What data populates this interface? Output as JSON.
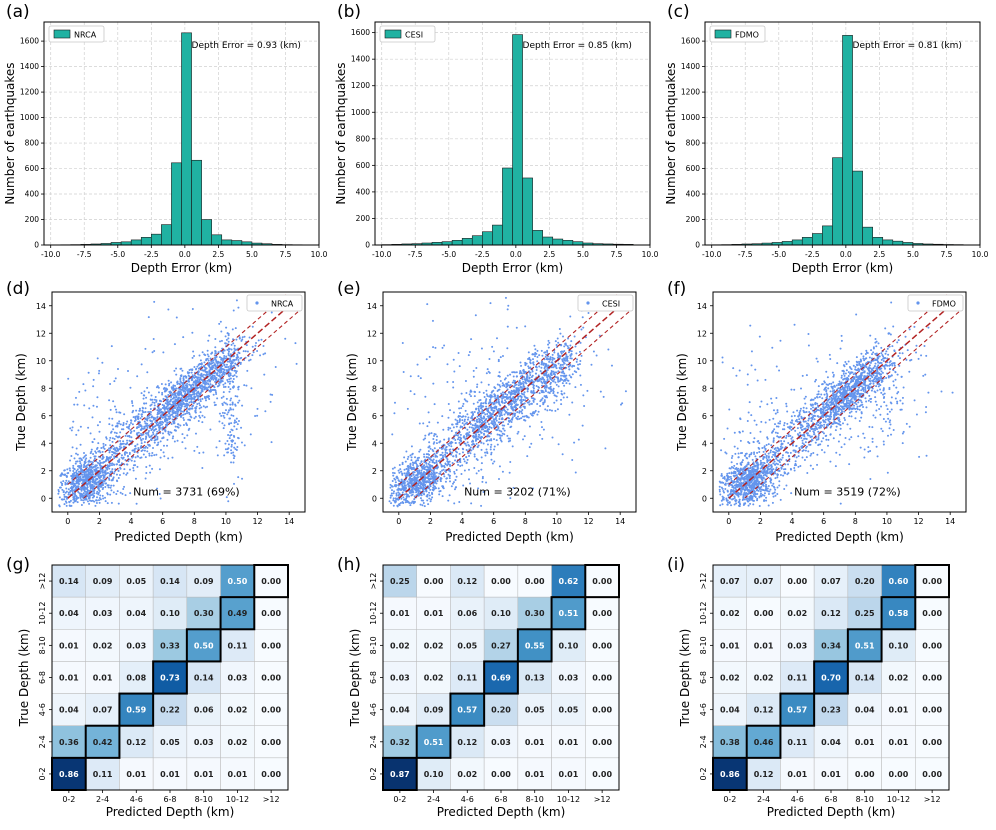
{
  "chart_data": [
    {
      "panel": "(a)",
      "type": "bar",
      "subtype": "histogram",
      "legend": "NRCA",
      "annotation": "Depth Error = 0.93 (km)",
      "xlabel": "Depth Error (km)",
      "ylabel": "Number of earthquakes",
      "xlim": [
        -10.5,
        10
      ],
      "ylim": [
        0,
        1750
      ],
      "xticks": [
        "-10.0",
        "-7.5",
        "-5.0",
        "-2.5",
        "0.0",
        "2.5",
        "5.0",
        "7.5",
        "10.0"
      ],
      "yticks": [
        "0",
        "200",
        "400",
        "600",
        "800",
        "1000",
        "1200",
        "1400",
        "1600"
      ],
      "bin_edges": [
        -10,
        -9.25,
        -8.5,
        -7.75,
        -7,
        -6.25,
        -5.5,
        -4.75,
        -4,
        -3.25,
        -2.5,
        -1.75,
        -1,
        -0.25,
        0.5,
        1.25,
        2,
        2.75,
        3.5,
        4.25,
        5,
        5.75,
        6.5,
        7.25,
        8,
        8.75
      ],
      "counts": [
        0,
        2,
        3,
        5,
        8,
        12,
        20,
        25,
        40,
        60,
        85,
        160,
        645,
        1665,
        665,
        200,
        80,
        40,
        35,
        25,
        15,
        10,
        5,
        3,
        2
      ]
    },
    {
      "panel": "(b)",
      "type": "bar",
      "subtype": "histogram",
      "legend": "CESI",
      "annotation": "Depth Error = 0.85 (km)",
      "xlabel": "Depth Error (km)",
      "ylabel": "Number of earthquakes",
      "xlim": [
        -10.5,
        10
      ],
      "ylim": [
        0,
        1680
      ],
      "xticks": [
        "-10.0",
        "-7.5",
        "-5.0",
        "-2.5",
        "0.0",
        "2.5",
        "5.0",
        "7.5",
        "10.0"
      ],
      "yticks": [
        "0",
        "200",
        "400",
        "600",
        "800",
        "1000",
        "1200",
        "1400",
        "1600"
      ],
      "bin_edges": [
        -10,
        -9.25,
        -8.5,
        -7.75,
        -7,
        -6.25,
        -5.5,
        -4.75,
        -4,
        -3.25,
        -2.5,
        -1.75,
        -1,
        -0.25,
        0.5,
        1.25,
        2,
        2.75,
        3.5,
        4.25,
        5,
        5.75,
        6.5,
        7.25,
        8,
        8.75
      ],
      "counts": [
        3,
        5,
        8,
        10,
        15,
        20,
        25,
        35,
        50,
        70,
        100,
        150,
        580,
        1585,
        505,
        110,
        60,
        45,
        35,
        25,
        15,
        10,
        8,
        6,
        5
      ]
    },
    {
      "panel": "(c)",
      "type": "bar",
      "subtype": "histogram",
      "legend": "FDMO",
      "annotation": "Depth Error = 0.81 (km)",
      "xlabel": "Depth Error (km)",
      "ylabel": "Number of earthquakes",
      "xlim": [
        -10.5,
        10
      ],
      "ylim": [
        0,
        1750
      ],
      "xticks": [
        "-10.0",
        "-7.5",
        "-5.0",
        "-2.5",
        "0.0",
        "2.5",
        "5.0",
        "7.5",
        "10.0"
      ],
      "yticks": [
        "0",
        "200",
        "400",
        "600",
        "800",
        "1000",
        "1200",
        "1400",
        "1600"
      ],
      "bin_edges": [
        -10,
        -9.25,
        -8.5,
        -7.75,
        -7,
        -6.25,
        -5.5,
        -4.75,
        -4,
        -3.25,
        -2.5,
        -1.75,
        -1,
        -0.25,
        0.5,
        1.25,
        2,
        2.75,
        3.5,
        4.25,
        5,
        5.75,
        6.5,
        7.25,
        8,
        8.75
      ],
      "counts": [
        2,
        3,
        5,
        8,
        10,
        15,
        20,
        28,
        40,
        60,
        90,
        150,
        685,
        1645,
        580,
        140,
        60,
        40,
        30,
        20,
        12,
        8,
        6,
        4,
        3
      ]
    },
    {
      "panel": "(d)",
      "type": "scatter",
      "legend": "NRCA",
      "annotation": "Num = 3731 (69%)",
      "xlabel": "Predicted Depth (km)",
      "ylabel": "True Depth (km)",
      "xlim": [
        -1,
        15
      ],
      "ylim": [
        -1,
        15
      ],
      "ticks": [
        "0",
        "2",
        "4",
        "6",
        "8",
        "10",
        "12",
        "14"
      ],
      "reference_lines": [
        "y = x",
        "y = x + 1",
        "y = x - 1"
      ],
      "point_clusters": [
        {
          "cx": 1.2,
          "cy": 1.2,
          "sx": 0.9,
          "sy": 0.9,
          "rho": 0.3,
          "n": 700
        },
        {
          "cx": 7.5,
          "cy": 7.6,
          "sx": 1.6,
          "sy": 1.7,
          "rho": 0.85,
          "n": 850
        },
        {
          "cx": 4.5,
          "cy": 4.5,
          "sx": 2.8,
          "sy": 2.8,
          "rho": 0.9,
          "n": 700
        },
        {
          "cx": 10.3,
          "cy": 6.5,
          "sx": 0.3,
          "sy": 3.0,
          "rho": 0,
          "n": 140
        },
        {
          "cx": 7.0,
          "cy": 7.0,
          "sx": 3.5,
          "sy": 3.5,
          "rho": 0.4,
          "n": 180
        },
        {
          "cx": 1.5,
          "cy": 5.0,
          "sx": 1.0,
          "sy": 3.5,
          "rho": 0,
          "n": 60
        },
        {
          "cx": 9.5,
          "cy": 9.3,
          "sx": 0.8,
          "sy": 1.0,
          "rho": 0.5,
          "n": 150
        }
      ]
    },
    {
      "panel": "(e)",
      "type": "scatter",
      "legend": "CESI",
      "annotation": "Num = 3202 (71%)",
      "xlabel": "Predicted Depth (km)",
      "ylabel": "True Depth (km)",
      "xlim": [
        -1,
        15
      ],
      "ylim": [
        -1,
        15
      ],
      "ticks": [
        "0",
        "2",
        "4",
        "6",
        "8",
        "10",
        "12",
        "14"
      ],
      "reference_lines": [
        "y = x",
        "y = x + 1",
        "y = x - 1"
      ],
      "point_clusters": [
        {
          "cx": 1.2,
          "cy": 1.2,
          "sx": 0.9,
          "sy": 0.9,
          "rho": 0.4,
          "n": 650
        },
        {
          "cx": 7.2,
          "cy": 7.3,
          "sx": 1.8,
          "sy": 1.8,
          "rho": 0.85,
          "n": 700
        },
        {
          "cx": 4.8,
          "cy": 4.8,
          "sx": 2.9,
          "sy": 2.9,
          "rho": 0.9,
          "n": 650
        },
        {
          "cx": 10.0,
          "cy": 9.0,
          "sx": 0.7,
          "sy": 1.2,
          "rho": 0.3,
          "n": 180
        },
        {
          "cx": 6.5,
          "cy": 6.5,
          "sx": 3.5,
          "sy": 3.5,
          "rho": 0.3,
          "n": 200
        },
        {
          "cx": 4.0,
          "cy": 5.5,
          "sx": 2.0,
          "sy": 3.5,
          "rho": 0,
          "n": 60
        }
      ]
    },
    {
      "panel": "(f)",
      "type": "scatter",
      "legend": "FDMO",
      "annotation": "Num = 3519 (72%)",
      "xlabel": "Predicted Depth (km)",
      "ylabel": "True Depth (km)",
      "xlim": [
        -1,
        15
      ],
      "ylim": [
        -1,
        15
      ],
      "ticks": [
        "0",
        "2",
        "4",
        "6",
        "8",
        "10",
        "12",
        "14"
      ],
      "reference_lines": [
        "y = x",
        "y = x + 1",
        "y = x - 1"
      ],
      "point_clusters": [
        {
          "cx": 1.2,
          "cy": 1.2,
          "sx": 0.9,
          "sy": 0.9,
          "rho": 0.3,
          "n": 750
        },
        {
          "cx": 7.6,
          "cy": 7.8,
          "sx": 1.3,
          "sy": 1.4,
          "rho": 0.8,
          "n": 800
        },
        {
          "cx": 4.5,
          "cy": 4.5,
          "sx": 2.8,
          "sy": 2.8,
          "rho": 0.9,
          "n": 650
        },
        {
          "cx": 6.5,
          "cy": 6.5,
          "sx": 3.5,
          "sy": 3.5,
          "rho": 0.35,
          "n": 200
        },
        {
          "cx": 10.0,
          "cy": 8.0,
          "sx": 0.6,
          "sy": 2.0,
          "rho": 0,
          "n": 80
        },
        {
          "cx": 2.0,
          "cy": 5.0,
          "sx": 1.2,
          "sy": 3.5,
          "rho": 0,
          "n": 60
        }
      ]
    },
    {
      "panel": "(g)",
      "type": "heatmap",
      "subtype": "confusion_matrix",
      "xlabel": "Predicted Depth (km)",
      "ylabel": "True Depth (km)",
      "categories": [
        "0-2",
        "2-4",
        "4-6",
        "6-8",
        "8-10",
        "10-12",
        ">12"
      ],
      "rows_top_to_bottom": [
        ">12",
        "10-12",
        "8-10",
        "6-8",
        "4-6",
        "2-4",
        "0-2"
      ],
      "values": [
        [
          "0.14",
          "0.09",
          "0.05",
          "0.14",
          "0.09",
          "0.50",
          "0.00"
        ],
        [
          "0.04",
          "0.03",
          "0.04",
          "0.10",
          "0.30",
          "0.49",
          "0.00"
        ],
        [
          "0.01",
          "0.02",
          "0.03",
          "0.33",
          "0.50",
          "0.11",
          "0.00"
        ],
        [
          "0.01",
          "0.01",
          "0.08",
          "0.73",
          "0.14",
          "0.03",
          "0.00"
        ],
        [
          "0.04",
          "0.07",
          "0.59",
          "0.22",
          "0.06",
          "0.02",
          "0.00"
        ],
        [
          "0.36",
          "0.42",
          "0.12",
          "0.05",
          "0.03",
          "0.02",
          "0.00"
        ],
        [
          "0.86",
          "0.11",
          "0.01",
          "0.01",
          "0.01",
          "0.01",
          "0.00"
        ]
      ]
    },
    {
      "panel": "(h)",
      "type": "heatmap",
      "subtype": "confusion_matrix",
      "xlabel": "Predicted Depth (km)",
      "ylabel": "True Depth (km)",
      "categories": [
        "0-2",
        "2-4",
        "4-6",
        "6-8",
        "8-10",
        "10-12",
        ">12"
      ],
      "rows_top_to_bottom": [
        ">12",
        "10-12",
        "8-10",
        "6-8",
        "4-6",
        "2-4",
        "0-2"
      ],
      "values": [
        [
          "0.25",
          "0.00",
          "0.12",
          "0.00",
          "0.00",
          "0.62",
          "0.00"
        ],
        [
          "0.01",
          "0.01",
          "0.06",
          "0.10",
          "0.30",
          "0.51",
          "0.00"
        ],
        [
          "0.02",
          "0.02",
          "0.05",
          "0.27",
          "0.55",
          "0.10",
          "0.00"
        ],
        [
          "0.03",
          "0.02",
          "0.11",
          "0.69",
          "0.13",
          "0.03",
          "0.00"
        ],
        [
          "0.04",
          "0.09",
          "0.57",
          "0.20",
          "0.05",
          "0.05",
          "0.00"
        ],
        [
          "0.32",
          "0.51",
          "0.12",
          "0.03",
          "0.01",
          "0.01",
          "0.00"
        ],
        [
          "0.87",
          "0.10",
          "0.02",
          "0.00",
          "0.01",
          "0.01",
          "0.00"
        ]
      ]
    },
    {
      "panel": "(i)",
      "type": "heatmap",
      "subtype": "confusion_matrix",
      "xlabel": "Predicted Depth (km)",
      "ylabel": "True Depth (km)",
      "categories": [
        "0-2",
        "2-4",
        "4-6",
        "6-8",
        "8-10",
        "10-12",
        ">12"
      ],
      "rows_top_to_bottom": [
        ">12",
        "10-12",
        "8-10",
        "6-8",
        "4-6",
        "2-4",
        "0-2"
      ],
      "values": [
        [
          "0.07",
          "0.07",
          "0.00",
          "0.07",
          "0.20",
          "0.60",
          "0.00"
        ],
        [
          "0.02",
          "0.00",
          "0.02",
          "0.12",
          "0.25",
          "0.58",
          "0.00"
        ],
        [
          "0.01",
          "0.01",
          "0.03",
          "0.34",
          "0.51",
          "0.10",
          "0.00"
        ],
        [
          "0.02",
          "0.02",
          "0.11",
          "0.70",
          "0.14",
          "0.02",
          "0.00"
        ],
        [
          "0.04",
          "0.12",
          "0.57",
          "0.23",
          "0.04",
          "0.01",
          "0.00"
        ],
        [
          "0.38",
          "0.46",
          "0.11",
          "0.04",
          "0.01",
          "0.01",
          "0.00"
        ],
        [
          "0.86",
          "0.12",
          "0.01",
          "0.01",
          "0.00",
          "0.00",
          "0.00"
        ]
      ]
    }
  ],
  "colors": {
    "bar_fill": "#20b2a2",
    "bar_edge": "#1a1a1a",
    "scatter_point": "#6495ed",
    "reference_line": "#b22222",
    "grid": "#d0d0d0",
    "cell_text_dark": "#222222",
    "cell_text_light": "#ffffff",
    "heat_low": "#f7fbff",
    "heat_high": "#08306b"
  }
}
